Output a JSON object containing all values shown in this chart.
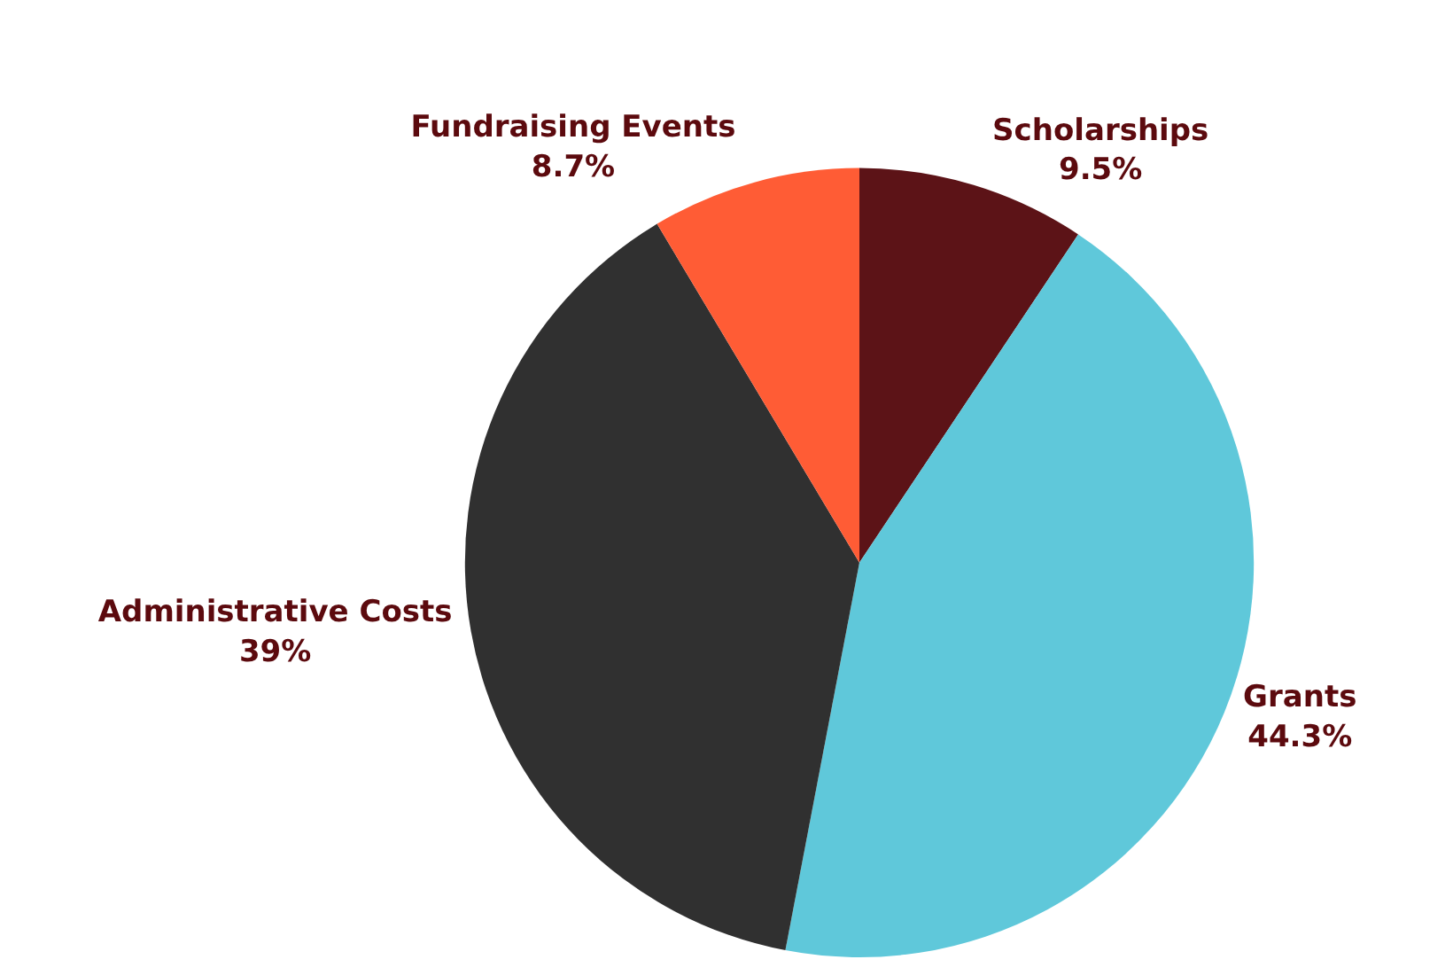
{
  "chart_data": {
    "type": "pie",
    "categories": [
      "Scholarships",
      "Grants",
      "Administrative Costs",
      "Fundraising Events"
    ],
    "values": [
      9.5,
      44.3,
      39,
      8.7
    ],
    "colors": [
      "#5c1317",
      "#5fc8da",
      "#303030",
      "#ff5c35"
    ],
    "value_labels": [
      "9.5%",
      "44.3%",
      "39%",
      "8.7%"
    ],
    "legend": false
  }
}
